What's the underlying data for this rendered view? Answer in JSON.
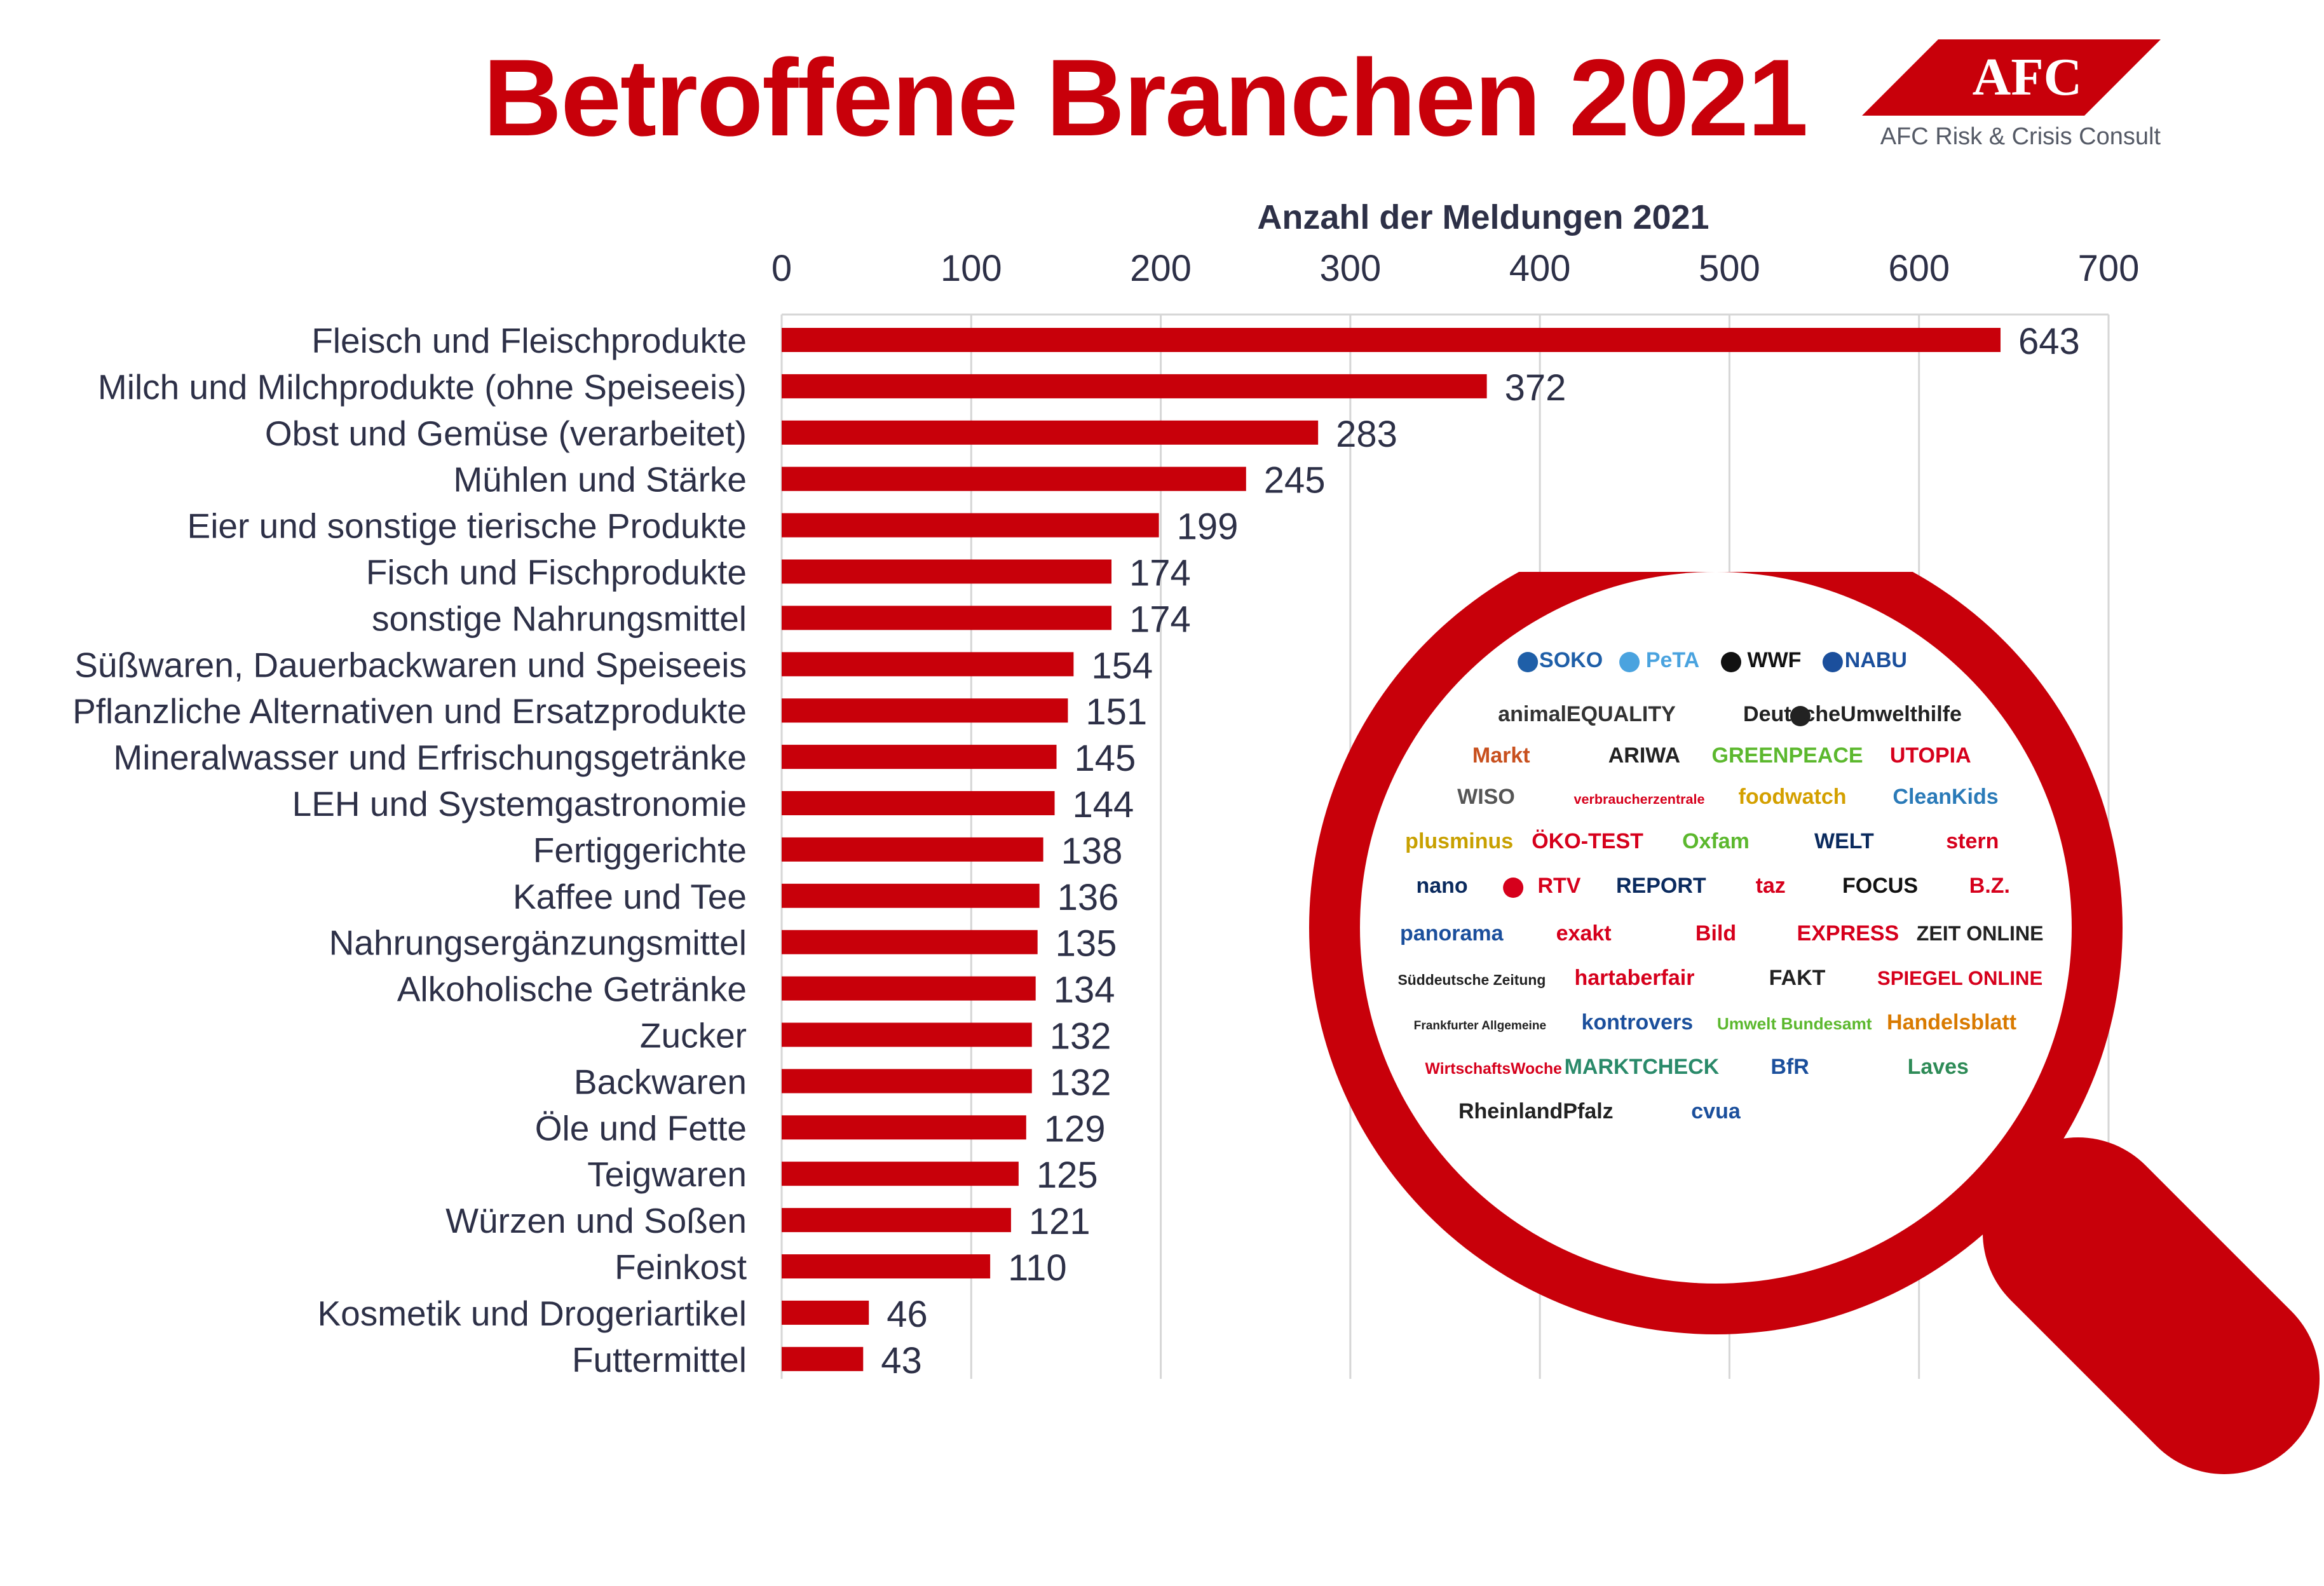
{
  "title": "Betroffene Branchen 2021",
  "brand": {
    "logo_text": "AFC",
    "company": "AFC Risk & Crisis Consult",
    "color": "#c8000a"
  },
  "colors": {
    "accent": "#c8000a",
    "text": "#2d3047",
    "grid": "#d6d6d6"
  },
  "chart_data": {
    "type": "bar",
    "orientation": "horizontal",
    "xlabel": "Anzahl der Meldungen 2021",
    "ylabel": "",
    "xlim": [
      0,
      700
    ],
    "ticks": [
      0,
      100,
      200,
      300,
      400,
      500,
      600,
      700
    ],
    "grid": true,
    "axis_position": "top",
    "categories": [
      "Fleisch und Fleischprodukte",
      "Milch und Milchprodukte (ohne Speiseeis)",
      "Obst und Gemüse (verarbeitet)",
      "Mühlen und Stärke",
      "Eier und sonstige tierische Produkte",
      "Fisch und Fischprodukte",
      "sonstige Nahrungsmittel",
      "Süßwaren, Dauerbackwaren und Speiseeis",
      "Pflanzliche Alternativen und Ersatzprodukte",
      "Mineralwasser und Erfrischungsgetränke",
      "LEH und Systemgastronomie",
      "Fertiggerichte",
      "Kaffee und Tee",
      "Nahrungsergänzungsmittel",
      "Alkoholische Getränke",
      "Zucker",
      "Backwaren",
      "Öle und Fette",
      "Teigwaren",
      "Würzen und Soßen",
      "Feinkost",
      "Kosmetik und Drogeriartikel",
      "Futtermittel"
    ],
    "values": [
      643,
      372,
      283,
      245,
      199,
      174,
      174,
      154,
      151,
      145,
      144,
      138,
      136,
      135,
      134,
      132,
      132,
      129,
      125,
      121,
      110,
      46,
      43
    ]
  },
  "magnifier": {
    "logos": [
      {
        "text": "SOKO",
        "color": "#1f5fa8",
        "icon": "soko-logo-icon"
      },
      {
        "text": "PeTA",
        "color": "#4aa3df",
        "icon": "peta-logo-icon"
      },
      {
        "text": "WWF",
        "color": "#111111",
        "icon": "wwf-panda-icon"
      },
      {
        "text": "NABU",
        "color": "#1b4f9c",
        "icon": "nabu-stork-icon"
      },
      {
        "text": "animalEQUALITY",
        "color": "#333333",
        "icon": ""
      },
      {
        "text": "DeutscheUmwelthilfe",
        "color": "#222222",
        "icon": "globe-icon"
      },
      {
        "text": "Markt",
        "color": "#c8501e",
        "icon": ""
      },
      {
        "text": "ARIWA",
        "color": "#222222",
        "icon": ""
      },
      {
        "text": "GREENPEACE",
        "color": "#5cb82e",
        "icon": ""
      },
      {
        "text": "UTOPIA",
        "color": "#d6001c",
        "icon": ""
      },
      {
        "text": "WISO",
        "color": "#555555",
        "icon": ""
      },
      {
        "text": "verbraucherzentrale",
        "color": "#d6001c",
        "icon": ""
      },
      {
        "text": "foodwatch",
        "color": "#d4a000",
        "icon": ""
      },
      {
        "text": "CleanKids",
        "color": "#2a7ab8",
        "icon": ""
      },
      {
        "text": "plusminus",
        "color": "#c8a000",
        "icon": ""
      },
      {
        "text": "ÖKO-TEST",
        "color": "#d6001c",
        "icon": ""
      },
      {
        "text": "Oxfam",
        "color": "#5cb82e",
        "icon": ""
      },
      {
        "text": "WELT",
        "color": "#0a2a5e",
        "icon": ""
      },
      {
        "text": "stern",
        "color": "#d6001c",
        "icon": ""
      },
      {
        "text": "nano",
        "color": "#0a2a5e",
        "icon": ""
      },
      {
        "text": "RTV",
        "color": "#d6001c",
        "icon": "star-icon"
      },
      {
        "text": "REPORT",
        "color": "#0a2a5e",
        "icon": ""
      },
      {
        "text": "taz",
        "color": "#d6001c",
        "icon": ""
      },
      {
        "text": "FOCUS",
        "color": "#111111",
        "icon": ""
      },
      {
        "text": "B.Z.",
        "color": "#d6001c",
        "icon": ""
      },
      {
        "text": "panorama",
        "color": "#1b4f9c",
        "icon": ""
      },
      {
        "text": "exakt",
        "color": "#d6001c",
        "icon": ""
      },
      {
        "text": "Bild",
        "color": "#d6001c",
        "icon": ""
      },
      {
        "text": "EXPRESS",
        "color": "#d6001c",
        "icon": ""
      },
      {
        "text": "ZEIT ONLINE",
        "color": "#222222",
        "icon": ""
      },
      {
        "text": "Süddeutsche Zeitung",
        "color": "#222222",
        "icon": ""
      },
      {
        "text": "hartaberfair",
        "color": "#d6001c",
        "icon": ""
      },
      {
        "text": "FAKT",
        "color": "#222222",
        "icon": ""
      },
      {
        "text": "SPIEGEL ONLINE",
        "color": "#d6001c",
        "icon": ""
      },
      {
        "text": "Frankfurter Allgemeine",
        "color": "#222222",
        "icon": ""
      },
      {
        "text": "kontrovers",
        "color": "#1b4f9c",
        "icon": ""
      },
      {
        "text": "Umwelt Bundesamt",
        "color": "#5cb82e",
        "icon": ""
      },
      {
        "text": "Handelsblatt",
        "color": "#d97a00",
        "icon": ""
      },
      {
        "text": "WirtschaftsWoche",
        "color": "#d6001c",
        "icon": ""
      },
      {
        "text": "MARKTCHECK",
        "color": "#2a8a6a",
        "icon": ""
      },
      {
        "text": "BfR",
        "color": "#1b4f9c",
        "icon": ""
      },
      {
        "text": "Laves",
        "color": "#2e8b57",
        "icon": ""
      },
      {
        "text": "RheinlandPfalz",
        "color": "#222222",
        "icon": ""
      },
      {
        "text": "cvua",
        "color": "#1b4f9c",
        "icon": ""
      }
    ]
  }
}
